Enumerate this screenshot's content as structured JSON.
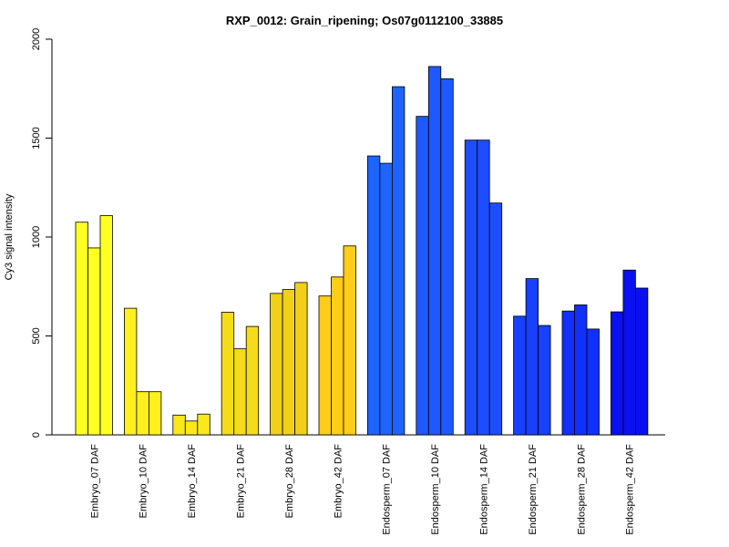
{
  "chart_data": {
    "type": "bar",
    "title": "RXP_0012: Grain_ripening; Os07g0112100_33885",
    "xlabel": "",
    "ylabel": "Cy3 signal intensity",
    "ylim": [
      0,
      2000
    ],
    "yticks": [
      "0",
      "500",
      "1000",
      "1500",
      "2000"
    ],
    "grid": false,
    "categories": [
      "Embryo_07 DAF",
      "Embryo_10 DAF",
      "Embryo_14 DAF",
      "Embryo_21 DAF",
      "Embryo_28 DAF",
      "Embryo_42 DAF",
      "Endosperm_07 DAF",
      "Endosperm_10 DAF",
      "Endosperm_14 DAF",
      "Endosperm_21 DAF",
      "Endosperm_28 DAF",
      "Endosperm_42 DAF"
    ],
    "group_colors": [
      "#ffff22",
      "#fff01e",
      "#fae81c",
      "#f5dc1a",
      "#f0d018",
      "#ffcc18",
      "#1e64ff",
      "#1e58ff",
      "#1e4cff",
      "#1840ff",
      "#1030ff",
      "#0a10f0"
    ],
    "values": [
      [
        1075,
        945,
        1108
      ],
      [
        640,
        218,
        218
      ],
      [
        100,
        70,
        105
      ],
      [
        620,
        435,
        548
      ],
      [
        715,
        735,
        770
      ],
      [
        702,
        798,
        955
      ],
      [
        1410,
        1373,
        1760
      ],
      [
        1610,
        1862,
        1800
      ],
      [
        1490,
        1490,
        1172
      ],
      [
        600,
        790,
        553
      ],
      [
        626,
        657,
        535
      ],
      [
        622,
        833,
        742
      ]
    ]
  }
}
